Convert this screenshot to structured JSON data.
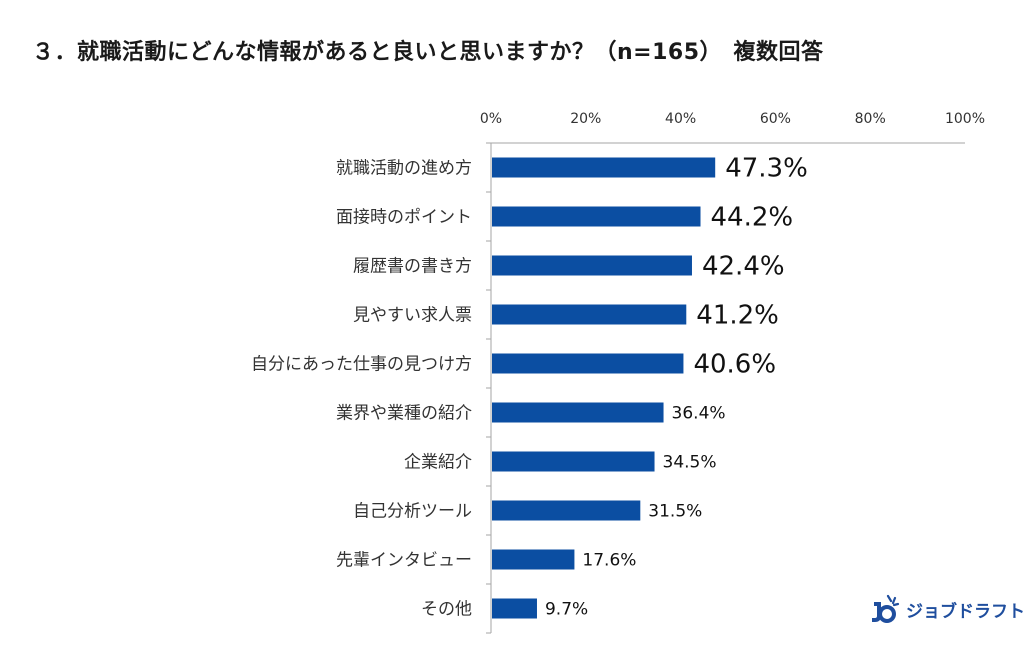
{
  "title": "３．就職活動にどんな情報があると良いと思いますか？（n=165）　複数回答",
  "brand": {
    "name": "ジョブドラフト",
    "color": "#1f4e9e"
  },
  "chart_data": {
    "type": "bar",
    "orientation": "horizontal",
    "title": "３．就職活動にどんな情報があると良いと思いますか？（n=165）　複数回答",
    "categories": [
      "就職活動の進め方",
      "面接時のポイント",
      "履歴書の書き方",
      "見やすい求人票",
      "自分にあった仕事の見つけ方",
      "業界や業種の紹介",
      "企業紹介",
      "自己分析ツール",
      "先輩インタビュー",
      "その他"
    ],
    "values": [
      47.3,
      44.2,
      42.4,
      41.2,
      40.6,
      36.4,
      34.5,
      31.5,
      17.6,
      9.7
    ],
    "value_labels": [
      "47.3%",
      "44.2%",
      "42.4%",
      "41.2%",
      "40.6%",
      "36.4%",
      "34.5%",
      "31.5%",
      "17.6%",
      "9.7%"
    ],
    "xlim": [
      0,
      100
    ],
    "x_ticks": [
      "0%",
      "20%",
      "40%",
      "60%",
      "80%",
      "100%"
    ],
    "bar_color": "#0b4ea2",
    "grid": false,
    "legend": "none"
  }
}
